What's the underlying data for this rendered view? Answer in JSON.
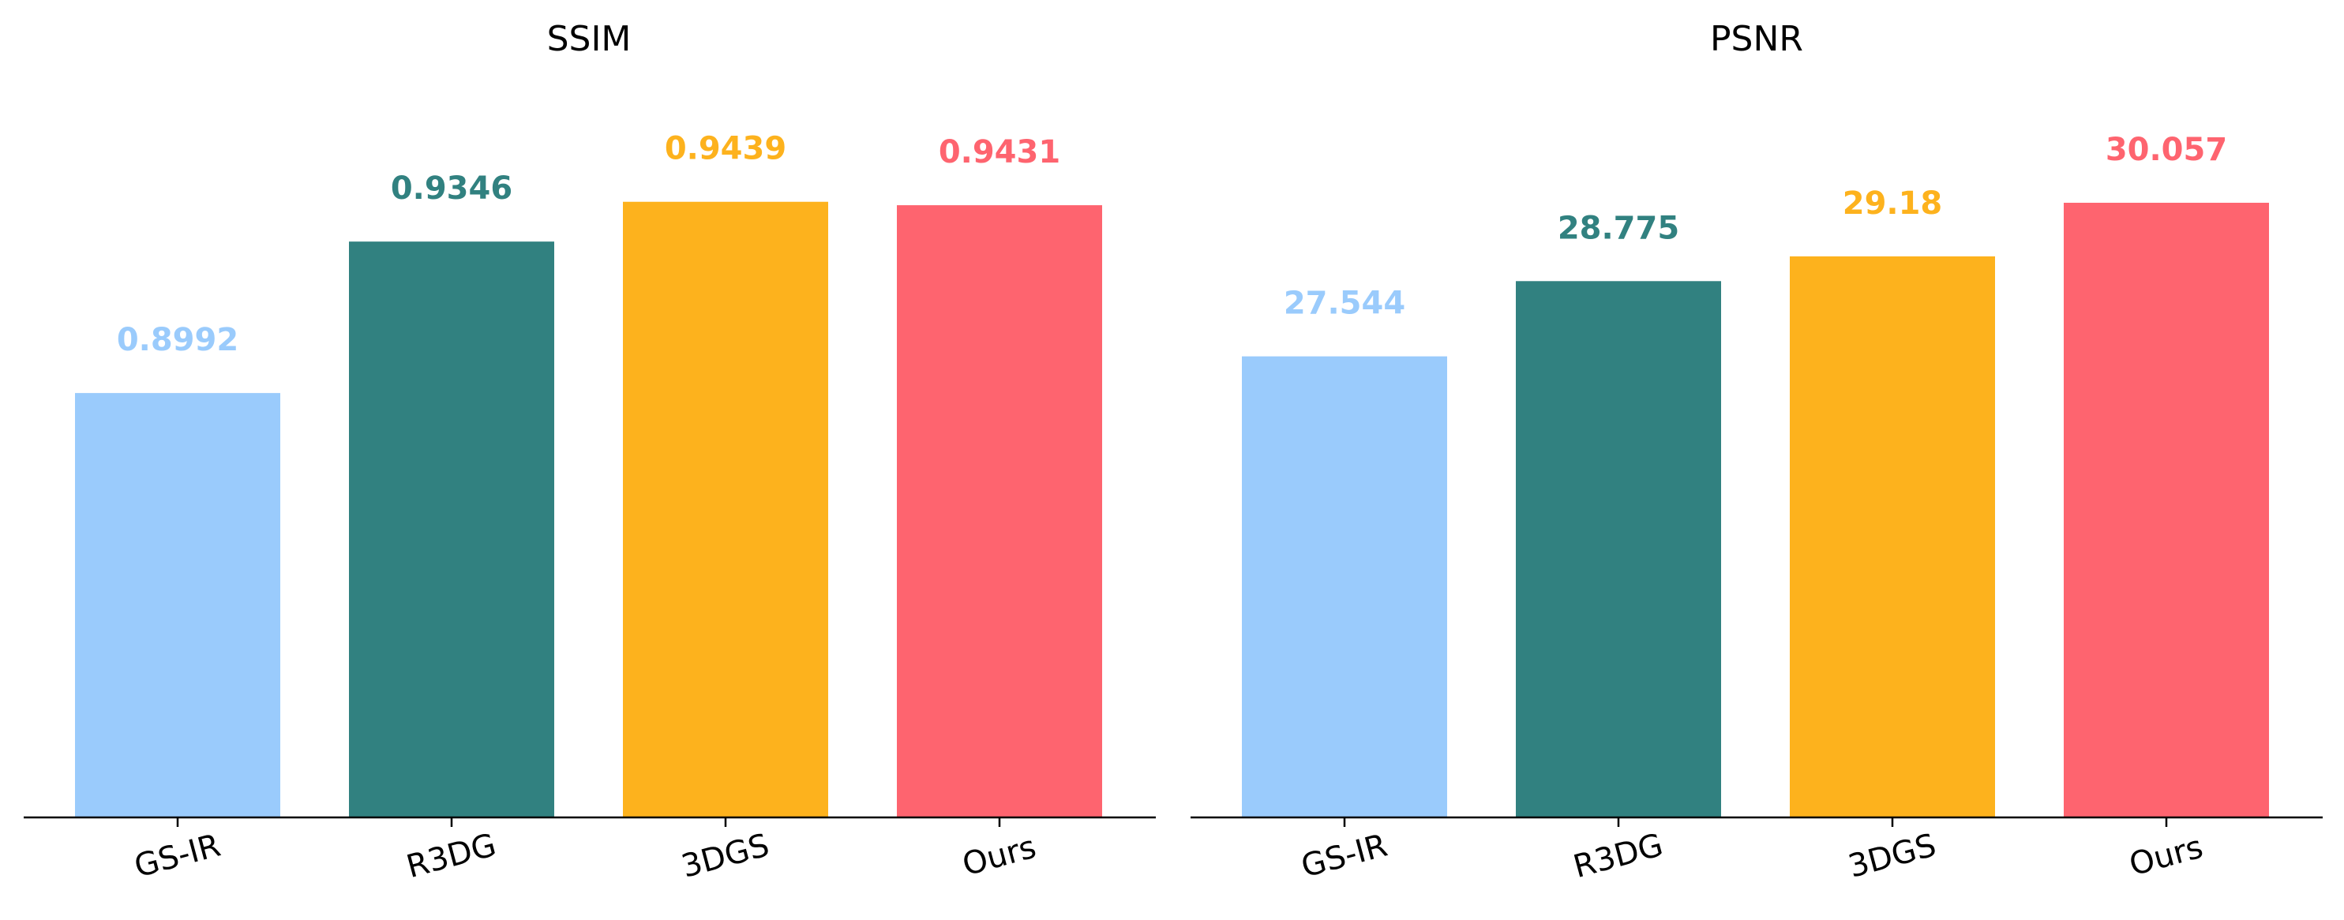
{
  "colors": {
    "GS-IR": "#9acbfc",
    "R3DG": "#318180",
    "3DGS": "#fdb21d",
    "Ours": "#fe646f",
    "axis": "#000000",
    "background": "#ffffff"
  },
  "chart_data": [
    {
      "type": "bar",
      "title": "SSIM",
      "categories": [
        "GS-IR",
        "R3DG",
        "3DGS",
        "Ours"
      ],
      "values": [
        0.8992,
        0.9346,
        0.9439,
        0.9431
      ],
      "value_labels": [
        "0.8992",
        "0.9346",
        "0.9439",
        "0.9431"
      ],
      "xlabel": "",
      "ylabel": "",
      "ylim": [
        0.8,
        0.98
      ],
      "grid": false,
      "y_axis_visible": false,
      "tick_label_rotation_deg": 15
    },
    {
      "type": "bar",
      "title": "PSNR",
      "categories": [
        "GS-IR",
        "R3DG",
        "3DGS",
        "Ours"
      ],
      "values": [
        27.544,
        28.775,
        29.18,
        30.057
      ],
      "value_labels": [
        "27.544",
        "28.775",
        "29.18",
        "30.057"
      ],
      "xlabel": "",
      "ylabel": "",
      "ylim": [
        20,
        32.6
      ],
      "grid": false,
      "y_axis_visible": false,
      "tick_label_rotation_deg": 15
    }
  ]
}
